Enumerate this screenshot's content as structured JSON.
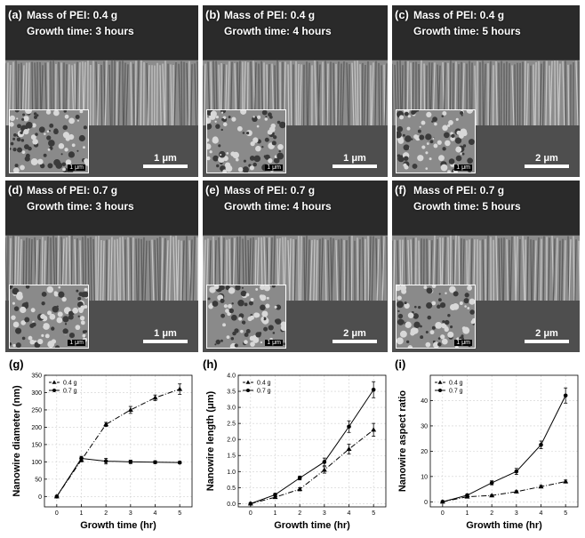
{
  "panels": [
    {
      "label": "(a)",
      "mass": "Mass of PEI: 0.4 g",
      "time": "Growth time: 3 hours",
      "scale": "1 μm",
      "inset_scale": "1 μm",
      "tone": "#5c5c5c"
    },
    {
      "label": "(b)",
      "mass": "Mass of PEI: 0.4 g",
      "time": "Growth time: 4 hours",
      "scale": "1 μm",
      "inset_scale": "1 μm",
      "tone": "#606060"
    },
    {
      "label": "(c)",
      "mass": "Mass of PEI: 0.4 g",
      "time": "Growth time: 5 hours",
      "scale": "2 μm",
      "inset_scale": "1 μm",
      "tone": "#3c3c3c"
    },
    {
      "label": "(d)",
      "mass": "Mass of PEI: 0.7 g",
      "time": "Growth time: 3 hours",
      "scale": "1 μm",
      "inset_scale": "1 μm",
      "tone": "#585858"
    },
    {
      "label": "(e)",
      "mass": "Mass of PEI: 0.7 g",
      "time": "Growth time: 4 hours",
      "scale": "2 μm",
      "inset_scale": "1 μm",
      "tone": "#6a6a6a"
    },
    {
      "label": "(f)",
      "mass": "Mass of PEI: 0.7 g",
      "time": "Growth time: 5 hours",
      "scale": "2 μm",
      "inset_scale": "1 μm",
      "tone": "#4c4c4c"
    }
  ],
  "chart_data": [
    {
      "panel": "(g)",
      "type": "line",
      "xlabel": "Growth time (hr)",
      "ylabel": "Nanowire diameter (nm)",
      "x": [
        0,
        1,
        2,
        3,
        4,
        5
      ],
      "xlim": [
        -0.5,
        5.5
      ],
      "ylim": [
        -30,
        350
      ],
      "xticks": [
        0,
        1,
        2,
        3,
        4,
        5
      ],
      "yticks": [
        0,
        50,
        100,
        150,
        200,
        250,
        300,
        350
      ],
      "series": [
        {
          "name": "0.4 g",
          "marker": "triangle",
          "dash": true,
          "values": [
            0,
            105,
            208,
            250,
            285,
            310
          ],
          "errors": [
            0,
            5,
            6,
            10,
            8,
            15
          ]
        },
        {
          "name": "0.7 g",
          "marker": "circle",
          "dash": false,
          "values": [
            0,
            110,
            102,
            100,
            99,
            98
          ],
          "errors": [
            0,
            6,
            8,
            5,
            4,
            3
          ]
        }
      ],
      "legend": "top-left",
      "grid": true
    },
    {
      "panel": "(h)",
      "type": "line",
      "xlabel": "Growth time (hr)",
      "ylabel": "Nanowire length (μm)",
      "x": [
        0,
        1,
        2,
        3,
        4,
        5
      ],
      "xlim": [
        -0.5,
        5.5
      ],
      "ylim": [
        -0.1,
        4.0
      ],
      "xticks": [
        0,
        1,
        2,
        3,
        4,
        5
      ],
      "yticks": [
        0.0,
        0.5,
        1.0,
        1.5,
        2.0,
        2.5,
        3.0,
        3.5,
        4.0
      ],
      "series": [
        {
          "name": "0.4 g",
          "marker": "triangle",
          "dash": true,
          "values": [
            0,
            0.2,
            0.45,
            1.05,
            1.7,
            2.3
          ],
          "errors": [
            0,
            0.03,
            0.05,
            0.1,
            0.15,
            0.2
          ]
        },
        {
          "name": "0.7 g",
          "marker": "circle",
          "dash": false,
          "values": [
            0,
            0.28,
            0.8,
            1.3,
            2.4,
            3.55
          ],
          "errors": [
            0,
            0.04,
            0.06,
            0.12,
            0.18,
            0.25
          ]
        }
      ],
      "legend": "top-left",
      "grid": true
    },
    {
      "panel": "(i)",
      "type": "line",
      "xlabel": "Growth time (hr)",
      "ylabel": "Nanowire aspect ratio",
      "x": [
        0,
        1,
        2,
        3,
        4,
        5
      ],
      "xlim": [
        -0.5,
        5.5
      ],
      "ylim": [
        -2,
        50
      ],
      "xticks": [
        0,
        1,
        2,
        3,
        4,
        5
      ],
      "yticks": [
        0,
        10,
        20,
        30,
        40
      ],
      "series": [
        {
          "name": "0.4 g",
          "marker": "triangle",
          "dash": true,
          "values": [
            0,
            2,
            2.5,
            4,
            6,
            8
          ],
          "errors": [
            0,
            0.3,
            0.3,
            0.4,
            0.5,
            0.6
          ]
        },
        {
          "name": "0.7 g",
          "marker": "circle",
          "dash": false,
          "values": [
            0,
            2.6,
            7.5,
            12,
            22.5,
            42
          ],
          "errors": [
            0,
            0.4,
            0.8,
            1.2,
            1.5,
            3
          ]
        }
      ],
      "legend": "top-left",
      "grid": true
    }
  ]
}
